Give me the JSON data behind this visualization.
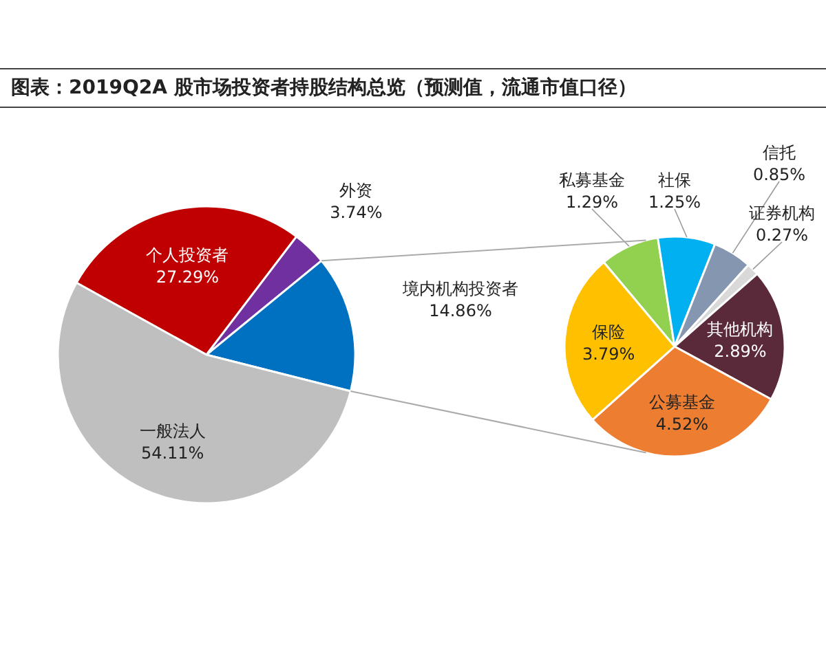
{
  "chart_data": [
    {
      "type": "pie",
      "title": "图表：2019Q2A 股市场投资者持股结构总览（预测值，流通市值口径）",
      "categories": [
        "个人投资者",
        "外资",
        "境内机构投资者",
        "一般法人"
      ],
      "values": [
        27.29,
        3.74,
        14.86,
        54.11
      ],
      "colors": [
        "#c00000",
        "#7030a0",
        "#0070c0",
        "#bfbfbf"
      ],
      "value_labels": [
        "27.29%",
        "3.74%",
        "14.86%",
        "54.11%"
      ]
    },
    {
      "type": "pie",
      "categories": [
        "私募基金",
        "社保",
        "信托",
        "证券机构",
        "其他机构",
        "公募基金",
        "保险"
      ],
      "values": [
        1.29,
        1.25,
        0.85,
        0.27,
        2.89,
        4.52,
        3.79
      ],
      "colors": [
        "#92d050",
        "#00b0f0",
        "#8496b0",
        "#d9d9d9",
        "#5b2a3a",
        "#ed7d31",
        "#ffc000"
      ],
      "value_labels": [
        "1.29%",
        "1.25%",
        "0.85%",
        "0.27%",
        "2.89%",
        "4.52%",
        "3.79%"
      ]
    }
  ]
}
